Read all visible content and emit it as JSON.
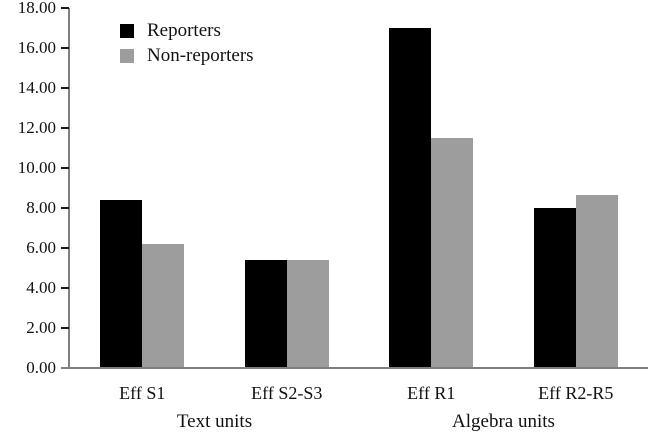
{
  "chart_data": {
    "type": "bar",
    "title": "",
    "xlabel": "",
    "ylabel": "",
    "categories": [
      "Eff S1",
      "Eff S2-S3",
      "Eff R1",
      "Eff R2-R5"
    ],
    "series": [
      {
        "name": "Reporters",
        "color": "#000000",
        "values": [
          8.4,
          5.4,
          17.0,
          8.0
        ]
      },
      {
        "name": "Non-reporters",
        "color": "#9d9d9d",
        "values": [
          6.2,
          5.4,
          11.5,
          8.65
        ]
      }
    ],
    "group_labels": [
      {
        "label": "Text units",
        "categories": [
          "Eff S1",
          "Eff S2-S3"
        ]
      },
      {
        "label": "Algebra units",
        "categories": [
          "Eff R1",
          "Eff R2-R5"
        ]
      }
    ],
    "ylim": [
      0,
      18
    ],
    "ytick_step": 2,
    "ytick_labels": [
      "0.00",
      "2.00",
      "4.00",
      "6.00",
      "8.00",
      "10.00",
      "12.00",
      "14.00",
      "16.00",
      "18.00"
    ],
    "grid": false,
    "legend_position": "top-left-inside"
  },
  "colors": {
    "background": "#ffffff",
    "axis_line": "#7f7f7f",
    "tick": "#1c1c1c",
    "text": "#111111",
    "bar_black": "#000000",
    "bar_gray": "#9d9d9d"
  }
}
